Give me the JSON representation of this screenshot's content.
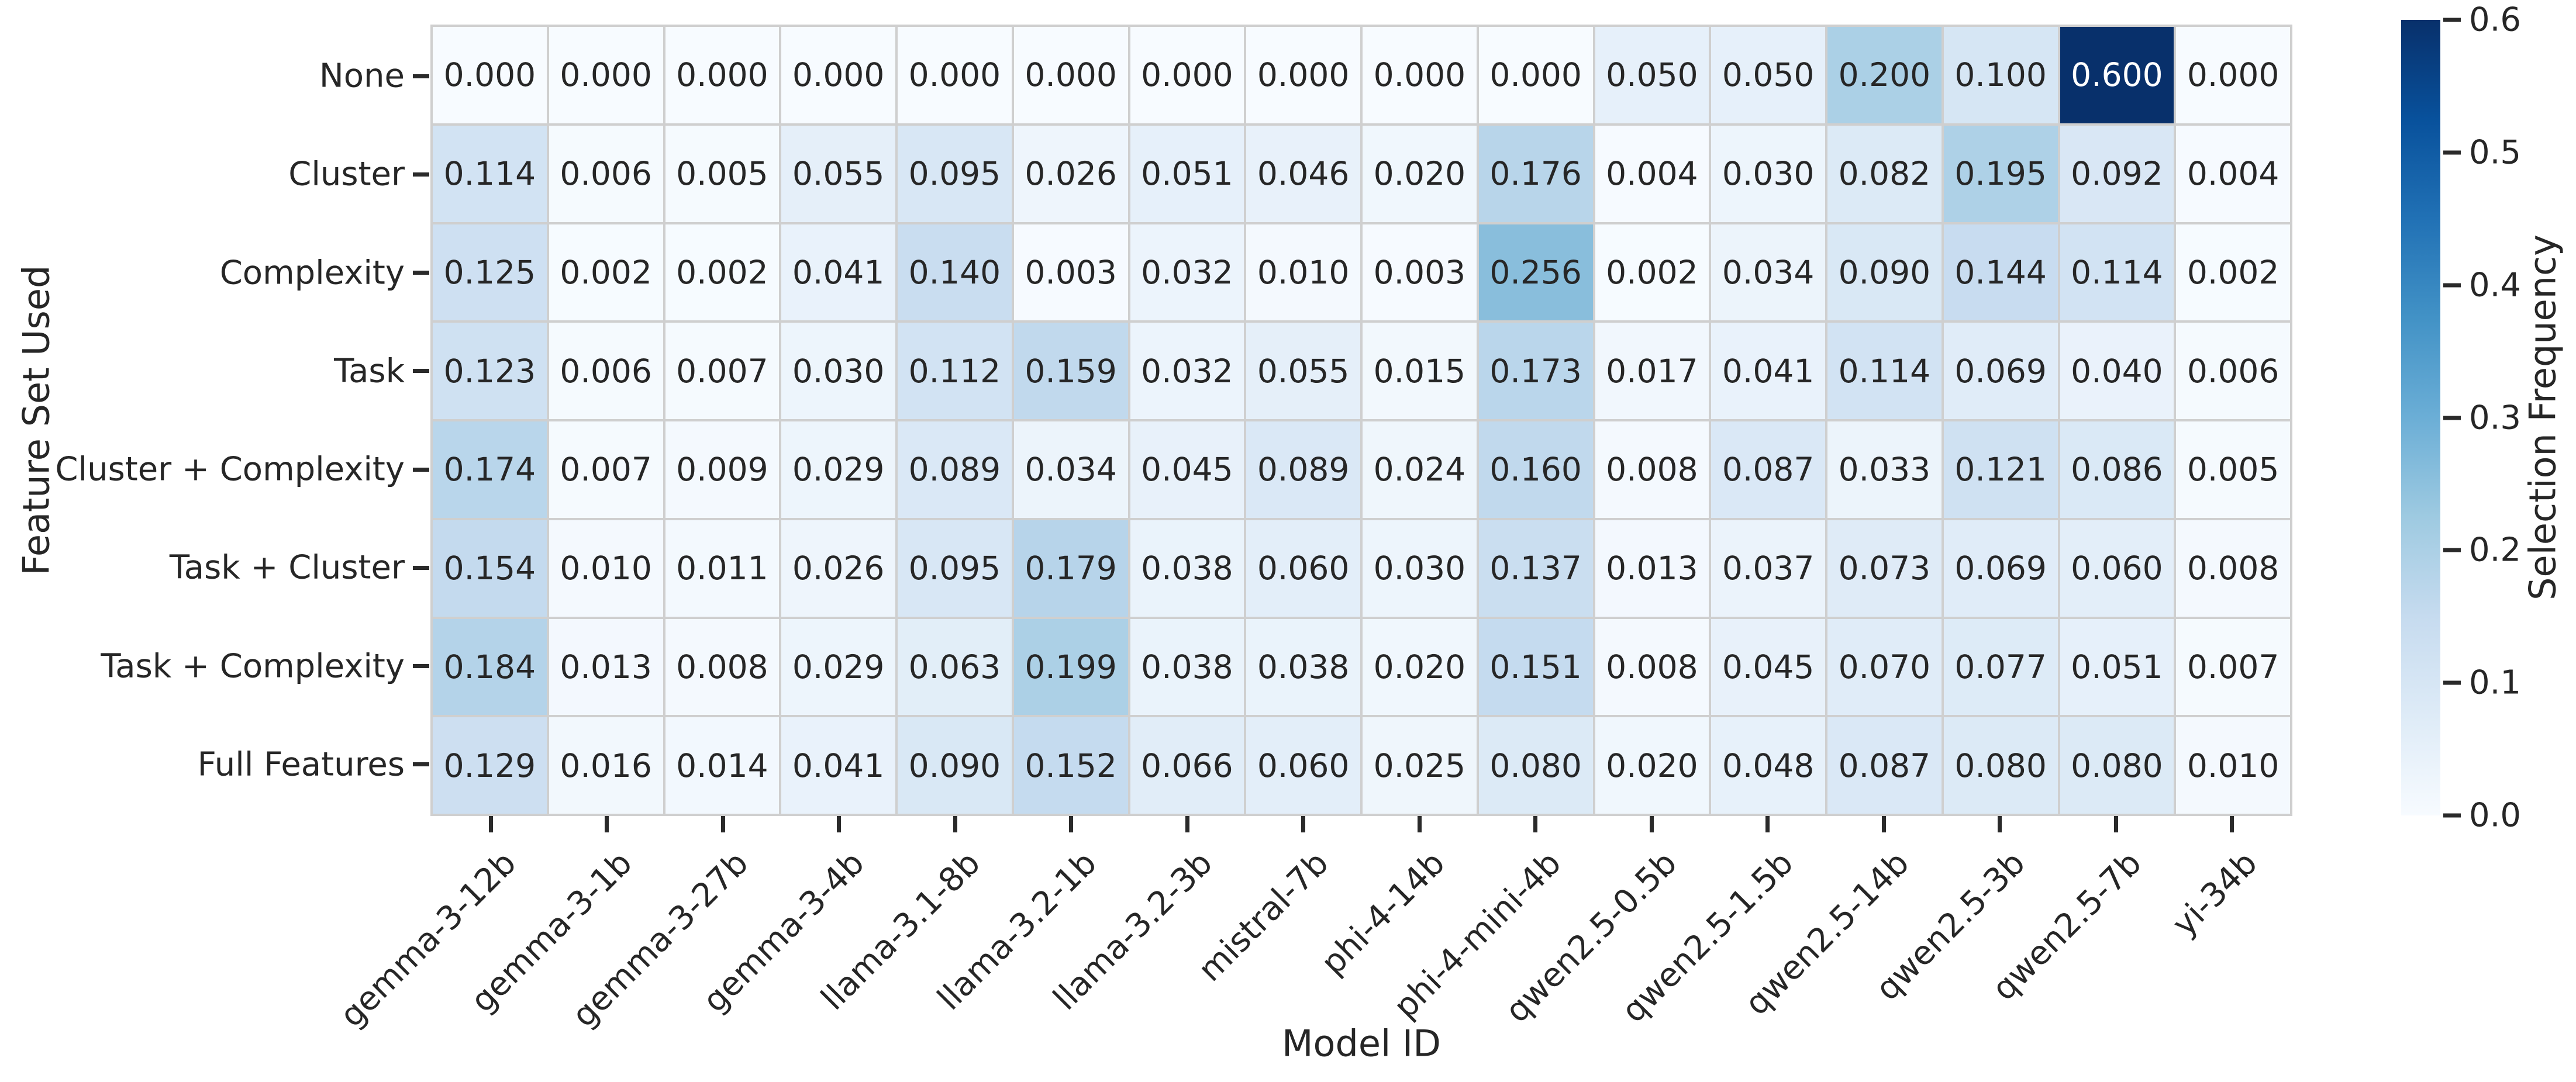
{
  "chart_data": {
    "type": "heatmap",
    "xlabel": "Model ID",
    "ylabel": "Feature Set Used",
    "colorbar_label": "Selection Frequency",
    "vmin": 0.0,
    "vmax": 0.6,
    "colormap": "Blues",
    "colorbar_ticks": [
      0.0,
      0.1,
      0.2,
      0.3,
      0.4,
      0.5,
      0.6
    ],
    "value_format_decimals": 3,
    "grid_on": false,
    "annotated": true,
    "columns": [
      "gemma-3-12b",
      "gemma-3-1b",
      "gemma-3-27b",
      "gemma-3-4b",
      "llama-3.1-8b",
      "llama-3.2-1b",
      "llama-3.2-3b",
      "mistral-7b",
      "phi-4-14b",
      "phi-4-mini-4b",
      "qwen2.5-0.5b",
      "qwen2.5-1.5b",
      "qwen2.5-14b",
      "qwen2.5-3b",
      "qwen2.5-7b",
      "yi-34b"
    ],
    "rows": [
      "None",
      "Cluster",
      "Complexity",
      "Task",
      "Cluster + Complexity",
      "Task + Cluster",
      "Task + Complexity",
      "Full Features"
    ],
    "values": [
      [
        0.0,
        0.0,
        0.0,
        0.0,
        0.0,
        0.0,
        0.0,
        0.0,
        0.0,
        0.0,
        0.05,
        0.05,
        0.2,
        0.1,
        0.6,
        0.0
      ],
      [
        0.114,
        0.006,
        0.005,
        0.055,
        0.095,
        0.026,
        0.051,
        0.046,
        0.02,
        0.176,
        0.004,
        0.03,
        0.082,
        0.195,
        0.092,
        0.004
      ],
      [
        0.125,
        0.002,
        0.002,
        0.041,
        0.14,
        0.003,
        0.032,
        0.01,
        0.003,
        0.256,
        0.002,
        0.034,
        0.09,
        0.144,
        0.114,
        0.002
      ],
      [
        0.123,
        0.006,
        0.007,
        0.03,
        0.112,
        0.159,
        0.032,
        0.055,
        0.015,
        0.173,
        0.017,
        0.041,
        0.114,
        0.069,
        0.04,
        0.006
      ],
      [
        0.174,
        0.007,
        0.009,
        0.029,
        0.089,
        0.034,
        0.045,
        0.089,
        0.024,
        0.16,
        0.008,
        0.087,
        0.033,
        0.121,
        0.086,
        0.005
      ],
      [
        0.154,
        0.01,
        0.011,
        0.026,
        0.095,
        0.179,
        0.038,
        0.06,
        0.03,
        0.137,
        0.013,
        0.037,
        0.073,
        0.069,
        0.06,
        0.008
      ],
      [
        0.184,
        0.013,
        0.008,
        0.029,
        0.063,
        0.199,
        0.038,
        0.038,
        0.02,
        0.151,
        0.008,
        0.045,
        0.07,
        0.077,
        0.051,
        0.007
      ],
      [
        0.129,
        0.016,
        0.014,
        0.041,
        0.09,
        0.152,
        0.066,
        0.06,
        0.025,
        0.08,
        0.02,
        0.048,
        0.087,
        0.08,
        0.08,
        0.01
      ]
    ]
  },
  "colors": {
    "background": "#ffffff",
    "grid_line": "#cfcfcf",
    "tick": "#2a2a2a",
    "text": "#262626",
    "annotation_light": "#ffffff",
    "blues_stops": [
      "#f7fbff",
      "#deebf7",
      "#c6dbef",
      "#9ecae1",
      "#6baed6",
      "#4292c6",
      "#2171b5",
      "#08519c",
      "#08306b"
    ]
  }
}
